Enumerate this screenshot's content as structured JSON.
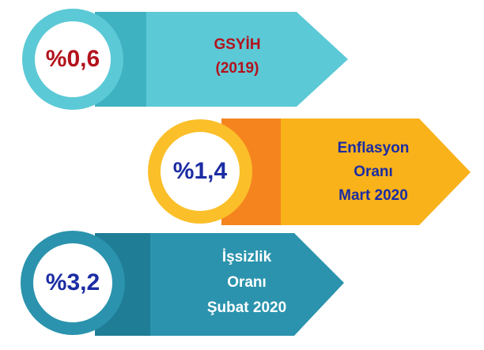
{
  "items": [
    {
      "value": "%0,6",
      "label": [
        "GSYİH",
        "(2019)"
      ]
    },
    {
      "value": "%1,4",
      "label": [
        "Enflasyon",
        "Oranı",
        "Mart 2020"
      ]
    },
    {
      "value": "%3,2",
      "label": [
        "İşsizlik",
        "Oranı",
        "Şubat 2020"
      ]
    }
  ]
}
